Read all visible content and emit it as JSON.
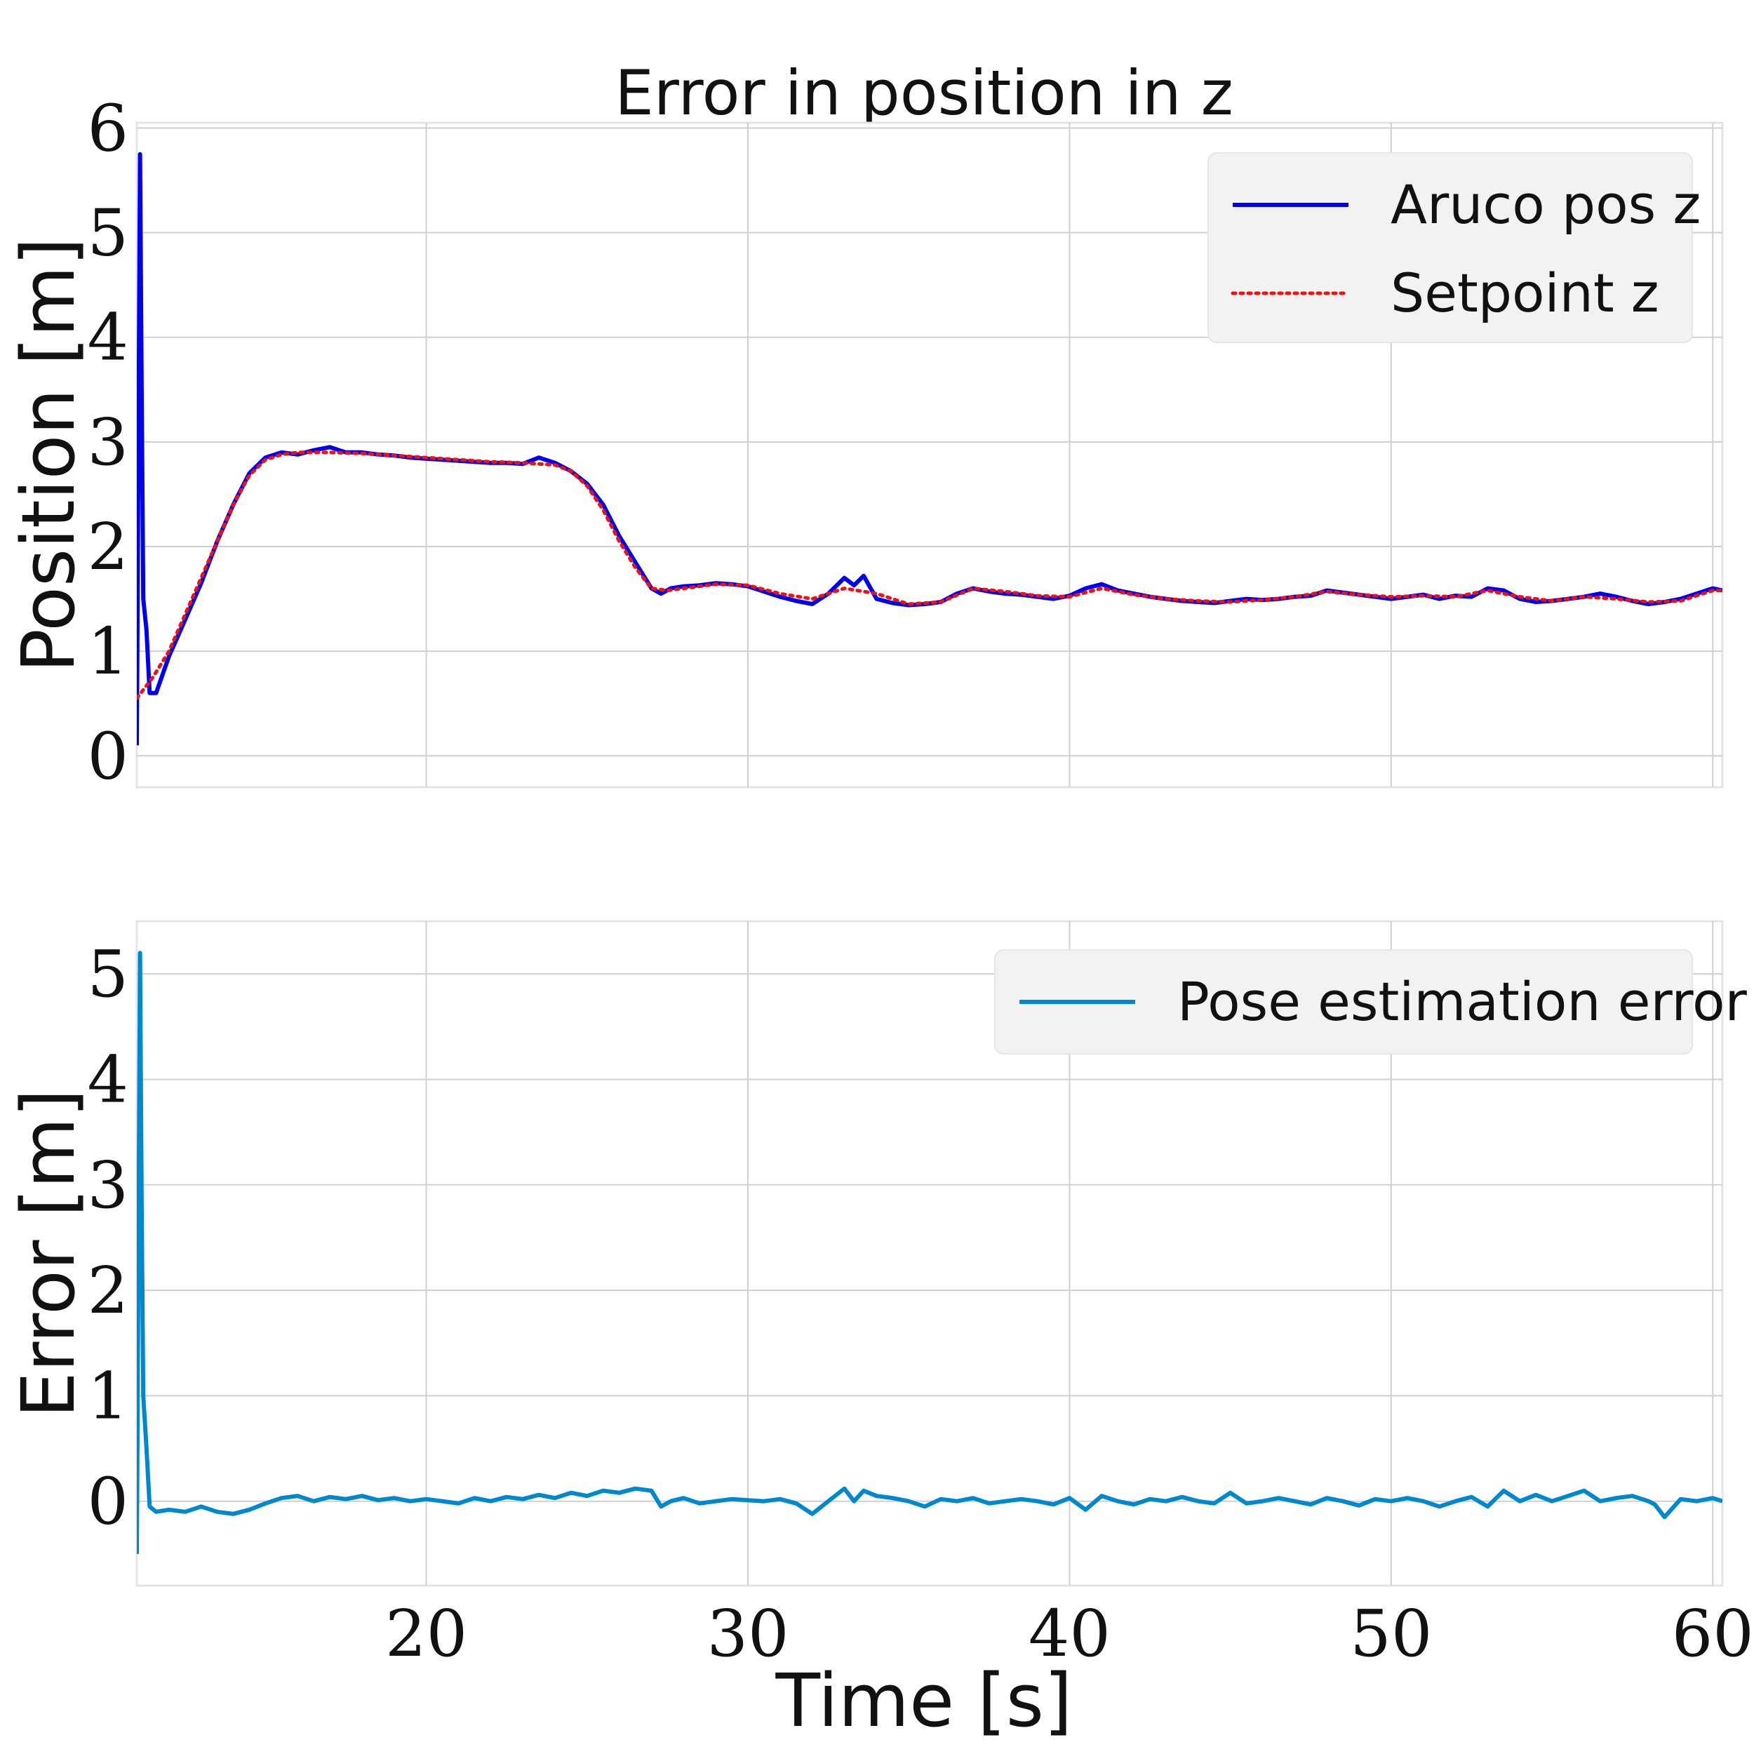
{
  "figure": {
    "title": "Error in position in z",
    "xlabel": "Time [s]"
  },
  "colors": {
    "aruco": "#0000ee",
    "setpoint": "#ee1111",
    "error": "#0088cc",
    "grid": "#d0d0d0",
    "legend_bg": "#f2f2f2"
  },
  "chart_data": [
    {
      "type": "line",
      "title": "Error in position in z",
      "ylabel": "Position [m]",
      "xlim": [
        11,
        60.3
      ],
      "ylim": [
        -0.3,
        6.05
      ],
      "xticks": [
        20,
        30,
        40,
        50,
        60
      ],
      "yticks": [
        0,
        1,
        2,
        3,
        4,
        5,
        6
      ],
      "grid": true,
      "legend": "top-right",
      "series": [
        {
          "name": "Aruco pos z",
          "style": "solid",
          "x": [
            11.0,
            11.1,
            11.15,
            11.2,
            11.3,
            11.4,
            11.6,
            12.0,
            12.5,
            13.0,
            13.5,
            14.0,
            14.5,
            15.0,
            15.5,
            16.0,
            16.5,
            17.0,
            17.5,
            18.0,
            18.5,
            19.0,
            19.5,
            20.0,
            20.5,
            21.0,
            21.5,
            22.0,
            22.5,
            23.0,
            23.5,
            24.0,
            24.5,
            25.0,
            25.5,
            26.0,
            26.5,
            27.0,
            27.3,
            27.6,
            28.0,
            28.5,
            29.0,
            29.5,
            30.0,
            30.5,
            31.0,
            31.5,
            32.0,
            32.5,
            33.0,
            33.3,
            33.6,
            34.0,
            34.5,
            35.0,
            35.5,
            36.0,
            36.5,
            37.0,
            37.5,
            38.0,
            38.5,
            39.0,
            39.5,
            40.0,
            40.5,
            41.0,
            41.5,
            42.0,
            42.5,
            43.0,
            43.5,
            44.0,
            44.5,
            45.0,
            45.5,
            46.0,
            46.5,
            47.0,
            47.5,
            48.0,
            48.5,
            49.0,
            49.5,
            50.0,
            50.5,
            51.0,
            51.5,
            52.0,
            52.5,
            53.0,
            53.5,
            54.0,
            54.5,
            55.0,
            55.5,
            56.0,
            56.5,
            57.0,
            57.5,
            58.0,
            58.5,
            59.0,
            59.5,
            60.0,
            60.3
          ],
          "y": [
            0.1,
            5.75,
            3.5,
            1.5,
            1.2,
            0.6,
            0.6,
            0.95,
            1.3,
            1.65,
            2.05,
            2.4,
            2.7,
            2.85,
            2.9,
            2.88,
            2.92,
            2.95,
            2.9,
            2.9,
            2.88,
            2.87,
            2.85,
            2.84,
            2.83,
            2.82,
            2.81,
            2.8,
            2.8,
            2.79,
            2.85,
            2.8,
            2.72,
            2.6,
            2.4,
            2.1,
            1.85,
            1.6,
            1.55,
            1.6,
            1.62,
            1.63,
            1.65,
            1.64,
            1.62,
            1.57,
            1.52,
            1.48,
            1.45,
            1.55,
            1.7,
            1.63,
            1.72,
            1.5,
            1.46,
            1.44,
            1.45,
            1.47,
            1.55,
            1.6,
            1.57,
            1.55,
            1.54,
            1.52,
            1.5,
            1.53,
            1.6,
            1.64,
            1.58,
            1.55,
            1.52,
            1.5,
            1.48,
            1.47,
            1.46,
            1.48,
            1.5,
            1.49,
            1.5,
            1.52,
            1.53,
            1.58,
            1.56,
            1.54,
            1.52,
            1.5,
            1.52,
            1.54,
            1.5,
            1.53,
            1.52,
            1.6,
            1.58,
            1.5,
            1.47,
            1.48,
            1.5,
            1.52,
            1.55,
            1.52,
            1.48,
            1.45,
            1.47,
            1.5,
            1.55,
            1.6,
            1.58
          ]
        },
        {
          "name": "Setpoint z",
          "style": "dotted",
          "x": [
            11.0,
            11.5,
            12.0,
            12.5,
            13.0,
            13.5,
            14.0,
            14.5,
            15.0,
            15.5,
            16.0,
            17.0,
            18.0,
            19.0,
            20.0,
            21.0,
            22.0,
            23.0,
            24.0,
            24.5,
            25.0,
            25.5,
            26.0,
            26.5,
            27.0,
            27.5,
            28.0,
            29.0,
            30.0,
            31.0,
            32.0,
            33.0,
            34.0,
            35.0,
            36.0,
            37.0,
            38.0,
            39.0,
            40.0,
            41.0,
            42.0,
            43.0,
            44.0,
            45.0,
            46.0,
            47.0,
            48.0,
            49.0,
            50.0,
            51.0,
            52.0,
            53.0,
            54.0,
            55.0,
            56.0,
            57.0,
            58.0,
            59.0,
            60.0,
            60.3
          ],
          "y": [
            0.55,
            0.75,
            1.0,
            1.35,
            1.7,
            2.05,
            2.4,
            2.68,
            2.83,
            2.88,
            2.9,
            2.9,
            2.89,
            2.87,
            2.85,
            2.83,
            2.81,
            2.8,
            2.78,
            2.72,
            2.58,
            2.35,
            2.05,
            1.8,
            1.6,
            1.58,
            1.6,
            1.64,
            1.63,
            1.55,
            1.5,
            1.6,
            1.55,
            1.45,
            1.47,
            1.6,
            1.57,
            1.53,
            1.52,
            1.6,
            1.54,
            1.5,
            1.48,
            1.47,
            1.49,
            1.52,
            1.57,
            1.54,
            1.52,
            1.53,
            1.52,
            1.58,
            1.52,
            1.48,
            1.52,
            1.5,
            1.47,
            1.48,
            1.58,
            1.58
          ]
        }
      ]
    },
    {
      "type": "line",
      "ylabel": "Error [m]",
      "xlim": [
        11,
        60.3
      ],
      "ylim": [
        -0.8,
        5.5
      ],
      "xticks": [
        20,
        30,
        40,
        50,
        60
      ],
      "yticks": [
        0,
        1,
        2,
        3,
        4,
        5
      ],
      "grid": true,
      "legend": "top-right",
      "series": [
        {
          "name": "Pose estimation error",
          "style": "solid",
          "x": [
            11.0,
            11.1,
            11.15,
            11.2,
            11.3,
            11.4,
            11.6,
            12.0,
            12.5,
            13.0,
            13.5,
            14.0,
            14.5,
            15.0,
            15.5,
            16.0,
            16.5,
            17.0,
            17.5,
            18.0,
            18.5,
            19.0,
            19.5,
            20.0,
            20.5,
            21.0,
            21.5,
            22.0,
            22.5,
            23.0,
            23.5,
            24.0,
            24.5,
            25.0,
            25.5,
            26.0,
            26.5,
            27.0,
            27.3,
            27.6,
            28.0,
            28.5,
            29.0,
            29.5,
            30.0,
            30.5,
            31.0,
            31.5,
            32.0,
            32.5,
            33.0,
            33.3,
            33.6,
            34.0,
            34.5,
            35.0,
            35.5,
            36.0,
            36.5,
            37.0,
            37.5,
            38.0,
            38.5,
            39.0,
            39.5,
            40.0,
            40.5,
            41.0,
            41.5,
            42.0,
            42.5,
            43.0,
            43.5,
            44.0,
            44.5,
            45.0,
            45.5,
            46.0,
            46.5,
            47.0,
            47.5,
            48.0,
            48.5,
            49.0,
            49.5,
            50.0,
            50.5,
            51.0,
            51.5,
            52.0,
            52.5,
            53.0,
            53.5,
            54.0,
            54.5,
            55.0,
            55.5,
            56.0,
            56.5,
            57.0,
            57.5,
            58.0,
            58.2,
            58.5,
            59.0,
            59.5,
            60.0,
            60.3
          ],
          "y": [
            -0.5,
            5.2,
            2.8,
            1.0,
            0.5,
            -0.05,
            -0.1,
            -0.08,
            -0.1,
            -0.05,
            -0.1,
            -0.12,
            -0.08,
            -0.02,
            0.03,
            0.05,
            0.0,
            0.04,
            0.02,
            0.05,
            0.01,
            0.03,
            0.0,
            0.02,
            0.0,
            -0.02,
            0.03,
            0.0,
            0.04,
            0.02,
            0.06,
            0.03,
            0.08,
            0.05,
            0.1,
            0.08,
            0.12,
            0.1,
            -0.05,
            0.0,
            0.03,
            -0.02,
            0.0,
            0.02,
            0.01,
            0.0,
            0.02,
            -0.02,
            -0.12,
            0.0,
            0.12,
            0.0,
            0.1,
            0.05,
            0.03,
            0.0,
            -0.05,
            0.02,
            0.0,
            0.03,
            -0.02,
            0.0,
            0.02,
            0.0,
            -0.03,
            0.03,
            -0.08,
            0.05,
            0.0,
            -0.03,
            0.02,
            0.0,
            0.04,
            0.0,
            -0.02,
            0.08,
            -0.02,
            0.0,
            0.03,
            0.0,
            -0.03,
            0.03,
            0.0,
            -0.04,
            0.02,
            0.0,
            0.03,
            0.0,
            -0.05,
            0.0,
            0.04,
            -0.05,
            0.1,
            0.0,
            0.06,
            0.0,
            0.05,
            0.1,
            0.0,
            0.03,
            0.05,
            0.0,
            -0.03,
            -0.15,
            0.02,
            0.0,
            0.03,
            0.0
          ]
        }
      ]
    }
  ]
}
